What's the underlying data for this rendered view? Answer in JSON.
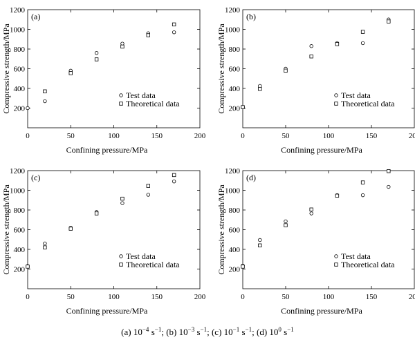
{
  "chart_data": [
    {
      "type": "scatter",
      "title": "(a)",
      "xlabel": "Confining pressure/MPa",
      "ylabel": "Compressive strength/MPa",
      "xlim": [
        0,
        200
      ],
      "ylim": [
        0,
        1200
      ],
      "xticks": [
        "0",
        "50",
        "100",
        "150",
        "200"
      ],
      "yticks": [
        "0",
        "200",
        "400",
        "600",
        "800",
        "1000",
        "1200"
      ],
      "legend_position": "center-right",
      "series": [
        {
          "name": "Test data",
          "marker": "circle",
          "x": [
            0,
            20,
            50,
            80,
            110,
            140,
            170
          ],
          "y": [
            200,
            270,
            580,
            760,
            855,
            960,
            970
          ]
        },
        {
          "name": "Theoretical data",
          "marker": "square",
          "x": [
            20,
            50,
            80,
            110,
            140,
            170
          ],
          "y": [
            370,
            555,
            695,
            825,
            940,
            1050
          ]
        }
      ]
    },
    {
      "type": "scatter",
      "title": "(b)",
      "xlabel": "Confining pressure/MPa",
      "ylabel": "Compressive strength/MPa",
      "xlim": [
        0,
        200
      ],
      "ylim": [
        0,
        1200
      ],
      "xticks": [
        "0",
        "50",
        "100",
        "150",
        "200"
      ],
      "yticks": [
        "0",
        "200",
        "400",
        "600",
        "800",
        "1000",
        "1200"
      ],
      "legend_position": "center-right",
      "series": [
        {
          "name": "Test data",
          "marker": "circle",
          "x": [
            0,
            20,
            50,
            80,
            110,
            140,
            170
          ],
          "y": [
            210,
            425,
            600,
            830,
            860,
            860,
            1100
          ]
        },
        {
          "name": "Theoretical data",
          "marker": "square",
          "x": [
            0,
            20,
            50,
            80,
            110,
            140,
            170
          ],
          "y": [
            210,
            395,
            580,
            725,
            850,
            975,
            1080
          ]
        }
      ]
    },
    {
      "type": "scatter",
      "title": "(c)",
      "xlabel": "Confining pressure/MPa",
      "ylabel": "Compressive strength/MPa",
      "xlim": [
        0,
        200
      ],
      "ylim": [
        0,
        1200
      ],
      "xticks": [
        "0",
        "50",
        "100",
        "150",
        "200"
      ],
      "yticks": [
        "0",
        "200",
        "400",
        "600",
        "800",
        "1000",
        "1200"
      ],
      "legend_position": "center-right",
      "series": [
        {
          "name": "Test data",
          "marker": "circle",
          "x": [
            0,
            20,
            50,
            80,
            110,
            140,
            170
          ],
          "y": [
            230,
            460,
            620,
            780,
            870,
            955,
            1090
          ]
        },
        {
          "name": "Theoretical data",
          "marker": "square",
          "x": [
            0,
            20,
            50,
            80,
            110,
            140,
            170
          ],
          "y": [
            225,
            420,
            610,
            765,
            915,
            1045,
            1155
          ]
        }
      ]
    },
    {
      "type": "scatter",
      "title": "(d)",
      "xlabel": "Confining pressure/MPa",
      "ylabel": "Compressive strength/MPa",
      "xlim": [
        0,
        200
      ],
      "ylim": [
        0,
        1200
      ],
      "xticks": [
        "0",
        "50",
        "100",
        "150",
        "200"
      ],
      "yticks": [
        "0",
        "200",
        "400",
        "600",
        "800",
        "1000",
        "1200"
      ],
      "legend_position": "center-right",
      "series": [
        {
          "name": "Test data",
          "marker": "circle",
          "x": [
            0,
            20,
            50,
            80,
            110,
            140,
            170
          ],
          "y": [
            235,
            495,
            685,
            765,
            950,
            950,
            1035
          ]
        },
        {
          "name": "Theoretical data",
          "marker": "square",
          "x": [
            0,
            20,
            50,
            80,
            110,
            140,
            170
          ],
          "y": [
            225,
            440,
            645,
            805,
            945,
            1080,
            1195
          ]
        }
      ]
    }
  ],
  "caption": {
    "parts": [
      {
        "text": "(a)  10",
        "sup": "−4",
        "unit": " s",
        "unit_sup": "−1",
        "sep": ";  "
      },
      {
        "text": "(b) 10",
        "sup": "−3",
        "unit": " s",
        "unit_sup": "−1",
        "sep": ";  "
      },
      {
        "text": "(c) 10",
        "sup": "−1",
        "unit": " s",
        "unit_sup": "−1",
        "sep": ";  "
      },
      {
        "text": "(d) 10",
        "sup": "0",
        "unit": " s",
        "unit_sup": "−1",
        "sep": ""
      }
    ]
  }
}
